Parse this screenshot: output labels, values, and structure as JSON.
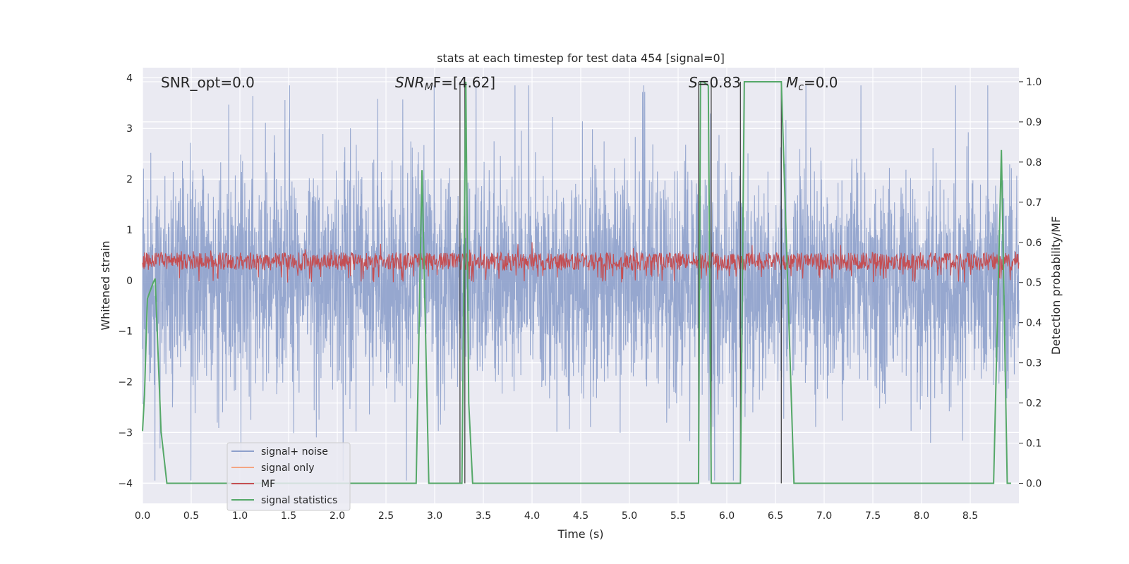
{
  "chart_data": {
    "type": "line",
    "title": "stats at each timestep for test data 454 [signal=0]",
    "xlabel": "Time (s)",
    "ylabel_left": "Whitened strain",
    "ylabel_right": "Detection probability/MF",
    "xlim": [
      0.0,
      9.0
    ],
    "ylim_left": [
      -4.4,
      4.2
    ],
    "ylim_right": [
      -0.05,
      1.035
    ],
    "x_ticks": [
      "0.0",
      "0.5",
      "1.0",
      "1.5",
      "2.0",
      "2.5",
      "3.0",
      "3.5",
      "4.0",
      "4.5",
      "5.0",
      "5.5",
      "6.0",
      "6.5",
      "7.0",
      "7.5",
      "8.0",
      "8.5"
    ],
    "y_ticks_left": [
      "4",
      "3",
      "2",
      "1",
      "0",
      "−1",
      "−2",
      "−3",
      "−4"
    ],
    "y_ticks_right": [
      "1.0",
      "0.9",
      "0.8",
      "0.7",
      "0.6",
      "0.5",
      "0.4",
      "0.3",
      "0.2",
      "0.1",
      "0.0"
    ],
    "grid": true,
    "legend_position": "lower-left",
    "annotations": {
      "snr_opt": "SNR_opt=0.0",
      "snr_mf_base": "SNR",
      "snr_mf_sub": "M",
      "snr_mf_rest": "F=[4.62]",
      "s_label": "S",
      "s_rest": "=0.83",
      "mc_base": "M",
      "mc_sub": "c",
      "mc_rest": "=0.0"
    },
    "vertical_markers": [
      3.26,
      3.31,
      5.71,
      5.84,
      6.14,
      6.56
    ],
    "series": [
      {
        "name": "signal+ noise",
        "color": "#8da0cb",
        "description_values": "noise band, typical amplitude ±1.5, peaks ±3.8"
      },
      {
        "name": "signal only",
        "color": "#f4a582",
        "values": []
      },
      {
        "name": "MF",
        "color": "#c44e52",
        "axis": "right",
        "range": [
          0.5,
          0.6
        ]
      },
      {
        "name": "signal statistics",
        "color": "#55a868",
        "axis": "right",
        "x": [
          0.0,
          0.02,
          0.05,
          0.08,
          0.11,
          0.13,
          0.19,
          0.25,
          2.81,
          2.87,
          2.94,
          3.28,
          3.32,
          3.35,
          3.39,
          5.71,
          5.73,
          5.76,
          5.81,
          5.84,
          5.88,
          6.14,
          6.18,
          6.56,
          6.69,
          8.4,
          8.45,
          8.74,
          8.82,
          8.88,
          8.92
        ],
        "y": [
          0.13,
          0.22,
          0.46,
          0.48,
          0.5,
          0.51,
          0.13,
          0.0,
          0.0,
          0.78,
          0.0,
          0.0,
          1.0,
          0.2,
          0.0,
          0.0,
          1.0,
          1.0,
          0.99,
          0.0,
          0.0,
          0.0,
          1.0,
          1.0,
          0.0,
          0.0,
          0.0,
          0.0,
          0.83,
          0.0,
          0.0
        ]
      }
    ]
  }
}
